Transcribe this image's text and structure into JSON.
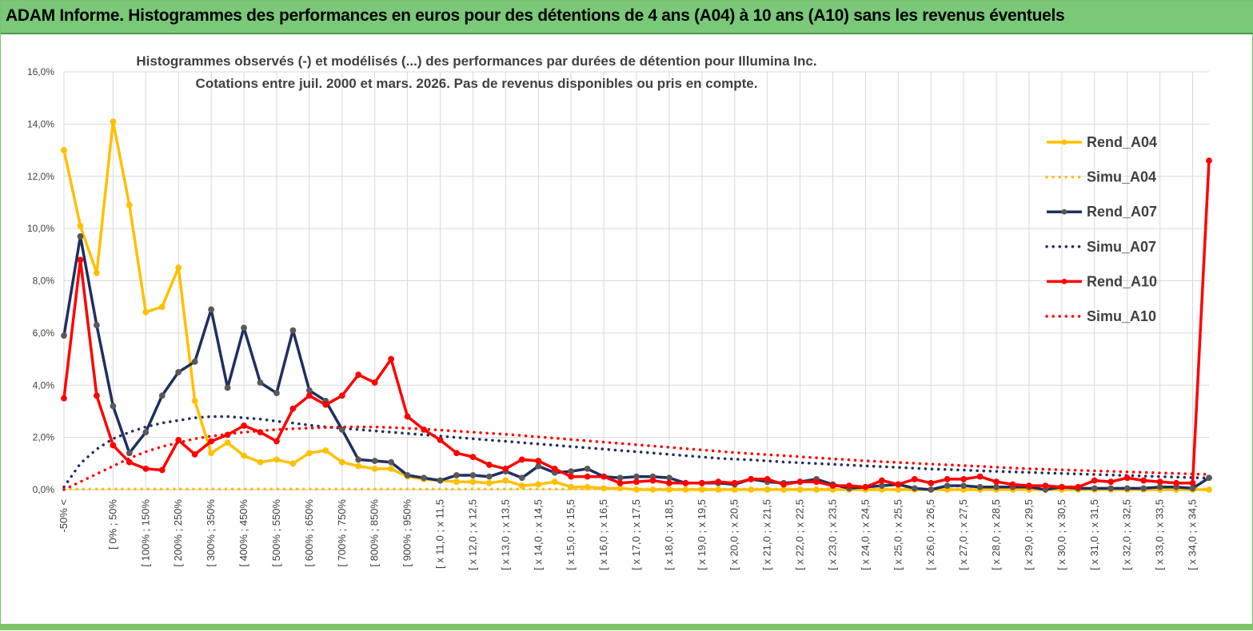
{
  "header": {
    "title": "ADAM Informe. Histogrammes des performances en euros pour des détentions de 4 ans (A04) à 10 ans (A10) sans les revenus éventuels"
  },
  "chart_data": {
    "type": "line",
    "title": "Histogrammes observés (-)  et modélisés (...) des performances par durées de détention pour Illumina Inc.",
    "subtitle": "Cotations entre juil. 2000 et mars. 2026.  Pas de revenus disponibles ou pris en compte.",
    "xlabel": "",
    "ylabel": "",
    "ylim": [
      0,
      16
    ],
    "yticks": [
      "0,0%",
      "2,0%",
      "4,0%",
      "6,0%",
      "8,0%",
      "10,0%",
      "12,0%",
      "14,0%",
      "16,0%"
    ],
    "categories": [
      "-50% <",
      "[ -50% ; -25%",
      "[ -25% ; 0%",
      "[ 0% ; 50%",
      "[ 50% ; 100%",
      "[ 100% ; 150%",
      "[ 150% ; 200%",
      "[ 200% ; 250%",
      "[ 250% ; 300%",
      "[ 300% ; 350%",
      "[ 350% ; 400%",
      "[ 400% ; 450%",
      "[ 450% ; 500%",
      "[ 500% ; 550%",
      "[ 550% ; 600%",
      "[ 600% ; 650%",
      "[ 650% ; 700%",
      "[ 700% ; 750%",
      "[ 750% ; 800%",
      "[ 800% ; 850%",
      "[ 850% ; 900%",
      "[ 900% ; 950%",
      "[ 950% ; 1000%",
      "[ x 11,0 ; x 11,5",
      "[ x 11,5 ; x 12,0",
      "[ x 12,0 ; x 12,5",
      "[ x 12,5 ; x 13,0",
      "[ x 13,0 ; x 13,5",
      "[ x 13,5 ; x 14,0",
      "[ x 14,0 ; x 14,5",
      "[ x 14,5 ; x 15,0",
      "[ x 15,0 ; x 15,5",
      "[ x 15,5 ; x 16,0",
      "[ x 16,0 ; x 16,5",
      "[ x 16,5 ; x 17,0",
      "[ x 17,0 ; x 17,5",
      "[ x 17,5 ; x 18,0",
      "[ x 18,0 ; x 18,5",
      "[ x 18,5 ; x 19,0",
      "[ x 19,0 ; x 19,5",
      "[ x 19,5 ; x 20,0",
      "[ x 20,0 ; x 20,5",
      "[ x 20,5 ; x 21,0",
      "[ x 21,0 ; x 21,5",
      "[ x 21,5 ; x 22,0",
      "[ x 22,0 ; x 22,5",
      "[ x 22,5 ; x 23,0",
      "[ x 23,0 ; x 23,5",
      "[ x 23,5 ; x 24,0",
      "[ x 24,0 ; x 24,5",
      "[ x 24,5 ; x 25,0",
      "[ x 25,0 ; x 25,5",
      "[ x 25,5 ; x 26,0",
      "[ x 26,0 ; x 26,5",
      "[ x 26,5 ; x 27,0",
      "[ x 27,0 ; x 27,5",
      "[ x 27,5 ; x 28,0",
      "[ x 28,0 ; x 28,5",
      "[ x 28,5 ; x 29,0",
      "[ x 29,0 ; x 29,5",
      "[ x 29,5 ; x 30,0",
      "[ x 30,0 ; x 30,5",
      "[ x 30,5 ; x 31,0",
      "[ x 31,0 ; x 31,5",
      "[ x 31,5 ; x 32,0",
      "[ x 32,0 ; x 32,5",
      "[ x 32,5 ; x 33,0",
      "[ x 33,0 ; x 33,5",
      "[ x 33,5 ; x 34,0",
      "[ x 34,0 ; x 34,5",
      "[ x 34,5 ; x 35,0"
    ],
    "labeled_categories": [
      "-50% <",
      "[ 0% ; 50%",
      "[ 100% ; 150%",
      "[ 200% ; 250%",
      "[ 300% ; 350%",
      "[ 400% ; 450%",
      "[ 500% ; 550%",
      "[ 600% ; 650%",
      "[ 700% ; 750%",
      "[ 800% ; 850%",
      "[ 900% ; 950%",
      "[ x 11,0 ; x 11,5",
      "[ x 12,0 ; x 12,5",
      "[ x 13,0 ; x 13,5",
      "[ x 14,0 ; x 14,5",
      "[ x 15,0 ; x 15,5",
      "[ x 16,0 ; x 16,5",
      "[ x 17,0 ; x 17,5",
      "[ x 18,0 ; x 18,5",
      "[ x 19,0 ; x 19,5",
      "[ x 20,0 ; x 20,5",
      "[ x 21,0 ; x 21,5",
      "[ x 22,0 ; x 22,5",
      "[ x 23,0 ; x 23,5",
      "[ x 24,0 ; x 24,5",
      "[ x 25,0 ; x 25,5",
      "[ x 26,0 ; x 26,5",
      "[ x 27,0 ; x 27,5",
      "[ x 28,0 ; x 28,5",
      "[ x 29,0 ; x 29,5",
      "[ x 30,0 ; x 30,5",
      "[ x 31,0 ; x 31,5",
      "[ x 32,0 ; x 32,5",
      "[ x 33,0 ; x 33,5",
      "[ x 34,0 ; x 34,5"
    ],
    "legend_position": "right",
    "series": [
      {
        "name": "Rend_A04",
        "style": "solid",
        "color": "#FFC000",
        "values": [
          13.0,
          10.1,
          8.3,
          14.1,
          10.9,
          6.8,
          7.0,
          8.5,
          3.4,
          1.4,
          1.8,
          1.3,
          1.05,
          1.15,
          1.0,
          1.4,
          1.5,
          1.05,
          0.9,
          0.8,
          0.8,
          0.5,
          0.4,
          0.35,
          0.3,
          0.3,
          0.25,
          0.35,
          0.15,
          0.2,
          0.3,
          0.1,
          0.1,
          0.05,
          0.05,
          0.0,
          0.0,
          0.0,
          0.0,
          0.0,
          0.0,
          0.0,
          0.0,
          0.0,
          0.0,
          0.0,
          0.0,
          0.0,
          0.0,
          0.0,
          0.0,
          0.0,
          0.0,
          0.0,
          0.0,
          0.0,
          0.0,
          0.0,
          0.0,
          0.0,
          0.0,
          0.0,
          0.0,
          0.0,
          0.0,
          0.0,
          0.0,
          0.0,
          0.0,
          0.0,
          0.0
        ]
      },
      {
        "name": "Simu_A04",
        "style": "dotted",
        "color": "#FFC000",
        "values": [
          0.02,
          0.02,
          0.02,
          0.02,
          0.02,
          0.02,
          0.02,
          0.02,
          0.02,
          0.02,
          0.02,
          0.02,
          0.02,
          0.02,
          0.02,
          0.02,
          0.02,
          0.02,
          0.02,
          0.02,
          0.02,
          0.02,
          0.02,
          0.02,
          0.02,
          0.02,
          0.02,
          0.02,
          0.02,
          0.02,
          0.02,
          0.02,
          0.02,
          0.02,
          0.02,
          0.02,
          0.02,
          0.02,
          0.02,
          0.02,
          0.02,
          0.02,
          0.02,
          0.02,
          0.02,
          0.02,
          0.02,
          0.02,
          0.02,
          0.02,
          0.02,
          0.02,
          0.02,
          0.02,
          0.02,
          0.02,
          0.02,
          0.02,
          0.02,
          0.02,
          0.02,
          0.02,
          0.02,
          0.02,
          0.02,
          0.02,
          0.02,
          0.02,
          0.02,
          0.02,
          0.02
        ]
      },
      {
        "name": "Rend_A07",
        "style": "solid",
        "color": "#1F2F5F",
        "values": [
          5.9,
          9.7,
          6.3,
          3.2,
          1.4,
          2.2,
          3.6,
          4.5,
          4.9,
          6.9,
          3.9,
          6.2,
          4.1,
          3.7,
          6.1,
          3.8,
          3.4,
          2.3,
          1.15,
          1.1,
          1.05,
          0.55,
          0.45,
          0.35,
          0.55,
          0.55,
          0.5,
          0.7,
          0.45,
          0.9,
          0.65,
          0.7,
          0.8,
          0.5,
          0.45,
          0.5,
          0.5,
          0.45,
          0.25,
          0.25,
          0.25,
          0.2,
          0.4,
          0.3,
          0.25,
          0.3,
          0.4,
          0.2,
          0.05,
          0.1,
          0.15,
          0.2,
          0.05,
          0.0,
          0.15,
          0.15,
          0.1,
          0.1,
          0.1,
          0.1,
          0.0,
          0.1,
          0.05,
          0.05,
          0.05,
          0.05,
          0.05,
          0.1,
          0.1,
          0.05,
          0.45
        ]
      },
      {
        "name": "Simu_A07",
        "style": "dotted",
        "color": "#1F2F5F",
        "values": [
          0.1,
          1.0,
          1.55,
          1.95,
          2.2,
          2.4,
          2.55,
          2.65,
          2.75,
          2.8,
          2.8,
          2.75,
          2.7,
          2.62,
          2.55,
          2.47,
          2.4,
          2.35,
          2.3,
          2.25,
          2.2,
          2.15,
          2.1,
          2.05,
          2.0,
          1.95,
          1.9,
          1.85,
          1.8,
          1.75,
          1.7,
          1.65,
          1.6,
          1.55,
          1.5,
          1.45,
          1.4,
          1.35,
          1.3,
          1.25,
          1.2,
          1.17,
          1.14,
          1.1,
          1.06,
          1.03,
          1.0,
          0.97,
          0.94,
          0.91,
          0.88,
          0.85,
          0.82,
          0.79,
          0.77,
          0.75,
          0.72,
          0.7,
          0.68,
          0.66,
          0.64,
          0.62,
          0.6,
          0.58,
          0.56,
          0.54,
          0.52,
          0.5,
          0.48,
          0.46,
          0.44
        ]
      },
      {
        "name": "Rend_A10",
        "style": "solid",
        "color": "#FF0000",
        "values": [
          3.5,
          8.8,
          3.6,
          1.7,
          1.05,
          0.8,
          0.75,
          1.9,
          1.35,
          1.85,
          2.1,
          2.45,
          2.2,
          1.85,
          3.1,
          3.6,
          3.25,
          3.6,
          4.4,
          4.1,
          5.0,
          2.8,
          2.3,
          1.9,
          1.4,
          1.25,
          0.95,
          0.8,
          1.15,
          1.1,
          0.8,
          0.5,
          0.5,
          0.5,
          0.25,
          0.3,
          0.35,
          0.25,
          0.25,
          0.25,
          0.3,
          0.25,
          0.4,
          0.4,
          0.2,
          0.3,
          0.3,
          0.15,
          0.15,
          0.1,
          0.35,
          0.2,
          0.4,
          0.25,
          0.4,
          0.4,
          0.5,
          0.3,
          0.2,
          0.15,
          0.15,
          0.1,
          0.1,
          0.35,
          0.3,
          0.45,
          0.35,
          0.3,
          0.25,
          0.25,
          12.6
        ]
      },
      {
        "name": "Simu_A10",
        "style": "dotted",
        "color": "#FF0000",
        "values": [
          0.0,
          0.3,
          0.6,
          0.9,
          1.2,
          1.45,
          1.65,
          1.8,
          1.95,
          2.05,
          2.12,
          2.2,
          2.25,
          2.3,
          2.33,
          2.36,
          2.38,
          2.4,
          2.4,
          2.4,
          2.38,
          2.35,
          2.32,
          2.28,
          2.24,
          2.2,
          2.16,
          2.12,
          2.07,
          2.02,
          1.97,
          1.92,
          1.87,
          1.82,
          1.77,
          1.72,
          1.67,
          1.62,
          1.57,
          1.52,
          1.47,
          1.42,
          1.38,
          1.34,
          1.3,
          1.26,
          1.22,
          1.18,
          1.14,
          1.1,
          1.07,
          1.04,
          1.01,
          0.98,
          0.95,
          0.92,
          0.89,
          0.86,
          0.83,
          0.8,
          0.78,
          0.76,
          0.74,
          0.72,
          0.7,
          0.68,
          0.66,
          0.64,
          0.62,
          0.6,
          0.58
        ]
      }
    ]
  }
}
